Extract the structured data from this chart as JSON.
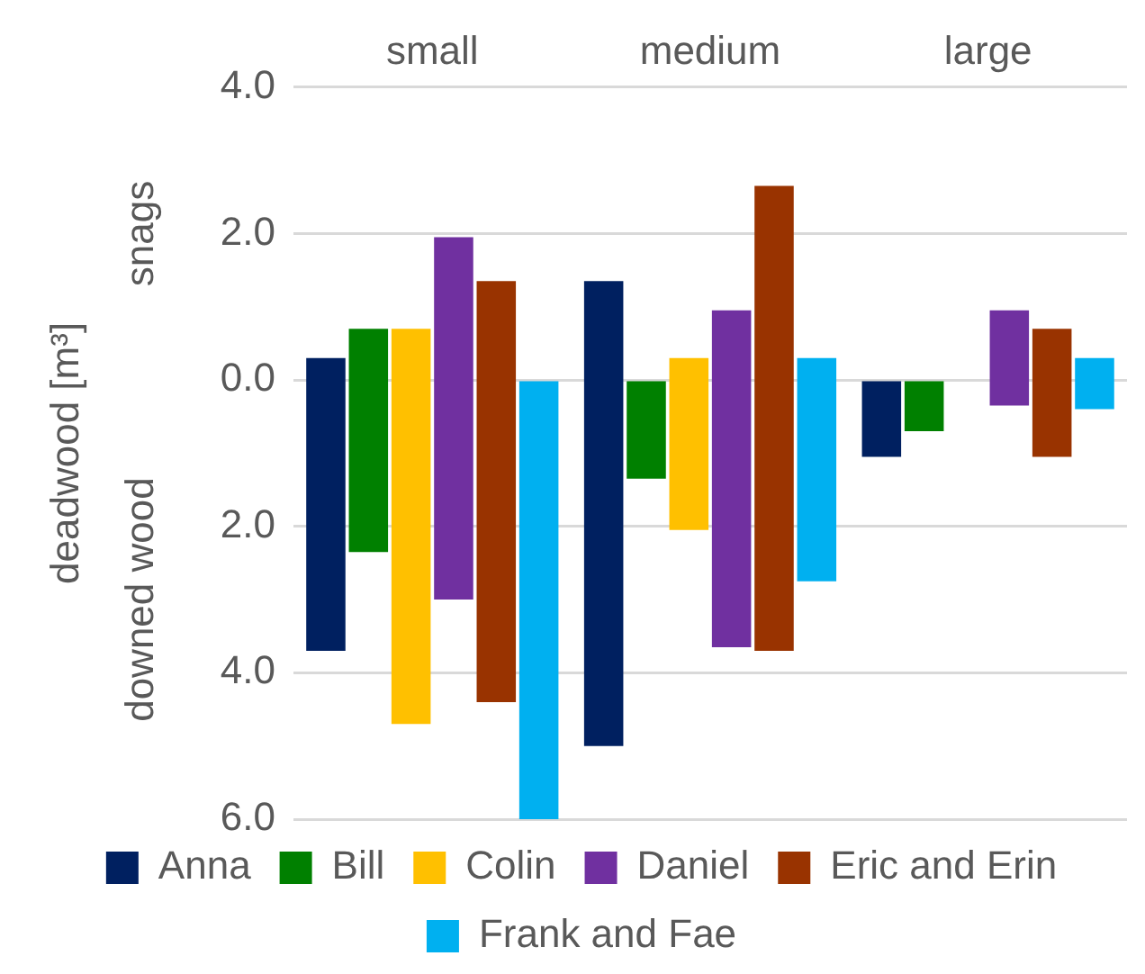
{
  "chart_data": {
    "type": "bar",
    "ylabel": "deadwood [m³]",
    "annotations": [
      "snags",
      "downed wood"
    ],
    "categories": [
      "small",
      "medium",
      "large"
    ],
    "series": [
      {
        "name": "Anna",
        "color": "#002060",
        "base": [
          -3.7,
          -5.0,
          -1.05
        ],
        "values": [
          4.0,
          6.35,
          1.05
        ]
      },
      {
        "name": "Bill",
        "color": "#008000",
        "base": [
          -2.35,
          -1.35,
          -0.7
        ],
        "values": [
          3.05,
          1.35,
          0.7
        ]
      },
      {
        "name": "Colin",
        "color": "#ffc000",
        "base": [
          -4.7,
          -2.05,
          null
        ],
        "values": [
          5.4,
          2.35,
          null
        ]
      },
      {
        "name": "Daniel",
        "color": "#7030a0",
        "base": [
          -3.0,
          -3.65,
          -0.35
        ],
        "values": [
          4.95,
          4.6,
          1.3
        ]
      },
      {
        "name": "Eric and Erin",
        "color": "#993300",
        "base": [
          -4.4,
          -3.7,
          -1.05
        ],
        "values": [
          5.75,
          6.35,
          1.75
        ]
      },
      {
        "name": "Frank and Fae",
        "color": "#00b0f0",
        "base": [
          -6.0,
          -2.75,
          -0.4
        ],
        "values": [
          6.0,
          3.05,
          0.7
        ]
      }
    ],
    "ylim": [
      -6,
      4
    ],
    "yticks": [
      {
        "value": 4,
        "label": "4.0"
      },
      {
        "value": 2,
        "label": "2.0"
      },
      {
        "value": 0,
        "label": "0.0"
      },
      {
        "value": -2,
        "label": "2.0"
      },
      {
        "value": -4,
        "label": "4.0"
      },
      {
        "value": -6,
        "label": "6.0"
      }
    ],
    "grid": "y",
    "legend": "bottom"
  }
}
